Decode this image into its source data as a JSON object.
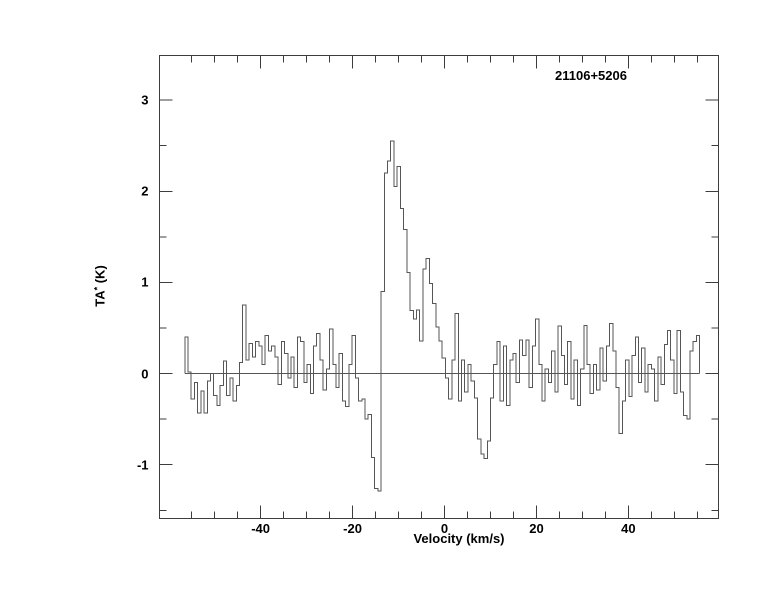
{
  "figure": {
    "annotation": "21106+5206",
    "xlabel": "Velocity (km/s)",
    "ylabel_base": "TA",
    "ylabel_sup": "*",
    "ylabel_unit": " (K)"
  },
  "chart_data": {
    "type": "line",
    "style": "histogram-step-spectrum",
    "title": "21106+5206",
    "xlabel": "Velocity (km/s)",
    "ylabel": "TA* (K)",
    "xlim": [
      -62,
      59.6
    ],
    "ylim": [
      -1.59,
      3.49
    ],
    "x_major_ticks": [
      -40,
      -20,
      0,
      20,
      40
    ],
    "x_tick_labels": [
      "-40",
      "-20",
      "0",
      "20",
      "40"
    ],
    "x_minor_ticks": [
      -55,
      -50,
      -45,
      -35,
      -30,
      -25,
      -15,
      -10,
      -5,
      5,
      10,
      15,
      25,
      30,
      35,
      45,
      50,
      55
    ],
    "y_major_ticks": [
      3,
      2,
      1,
      0,
      -1
    ],
    "y_tick_labels": [
      "3",
      "2",
      "1",
      "0",
      "-1"
    ],
    "y_minor_ticks": [
      2.5,
      1.5,
      0.5,
      -0.5,
      -1.5
    ],
    "grid": false,
    "legend": null,
    "baseline_y": 0,
    "v_start": -56.5,
    "dv": 0.7,
    "peak_value": 2.55,
    "peak_velocity": -11.8,
    "values": [
      0.4,
      0.02,
      -0.28,
      -0.1,
      -0.43,
      -0.19,
      -0.43,
      -0.08,
      0.0,
      -0.24,
      -0.35,
      -0.13,
      0.14,
      -0.24,
      -0.05,
      -0.3,
      -0.13,
      0.12,
      0.75,
      0.15,
      0.33,
      0.18,
      0.35,
      0.3,
      0.1,
      0.42,
      0.25,
      0.3,
      0.18,
      -0.12,
      0.35,
      0.22,
      -0.05,
      0.18,
      -0.15,
      0.4,
      0.35,
      -0.1,
      0.1,
      -0.22,
      0.3,
      0.44,
      0.15,
      -0.18,
      0.05,
      0.49,
      0.1,
      -0.15,
      0.22,
      -0.3,
      -0.36,
      0.1,
      0.42,
      -0.05,
      -0.3,
      -0.28,
      -0.5,
      -0.45,
      -0.92,
      -1.26,
      -1.29,
      0.9,
      2.2,
      2.33,
      2.55,
      2.05,
      2.27,
      1.81,
      1.58,
      1.11,
      0.69,
      0.6,
      0.7,
      0.36,
      1.15,
      1.26,
      0.99,
      0.77,
      0.51,
      0.36,
      0.17,
      -0.05,
      -0.28,
      0.15,
      0.66,
      -0.3,
      0.15,
      -0.2,
      0.1,
      -0.08,
      -0.27,
      -0.72,
      -0.88,
      -0.93,
      -0.74,
      -0.27,
      0.1,
      0.35,
      -0.3,
      0.3,
      -0.35,
      0.15,
      0.22,
      -0.1,
      0.37,
      0.2,
      0.37,
      -0.15,
      0.3,
      0.6,
      0.1,
      -0.3,
      0.05,
      -0.1,
      0.25,
      -0.2,
      0.52,
      0.2,
      -0.12,
      0.35,
      -0.28,
      0.15,
      -0.35,
      0.05,
      0.53,
      0.1,
      -0.22,
      0.1,
      -0.18,
      0.28,
      -0.08,
      0.3,
      0.55,
      0.25,
      -0.15,
      -0.66,
      -0.3,
      0.15,
      -0.25,
      0.2,
      0.4,
      -0.1,
      0.28,
      -0.2,
      0.1,
      0.05,
      -0.3,
      0.18,
      -0.12,
      0.32,
      0.47,
      0.15,
      -0.22,
      0.47,
      -0.2,
      -0.46,
      -0.5,
      0.25,
      0.35,
      0.42
    ],
    "colors": {
      "line": "#565656",
      "frame": "#3d3d3d",
      "text": "#000000",
      "background": "#ffffff"
    }
  }
}
